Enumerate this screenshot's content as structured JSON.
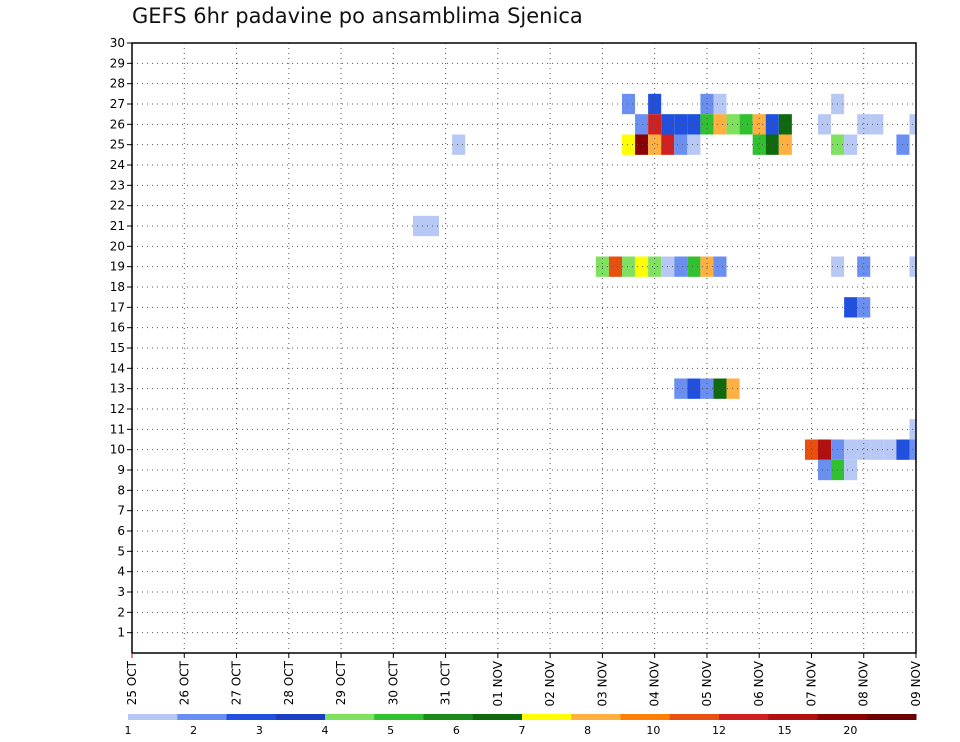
{
  "title": "GEFS 6hr padavine po ansamblima Sjenica",
  "chart_data": {
    "type": "heatmap",
    "title": "GEFS 6hr padavine po ansamblima Sjenica",
    "xlabel": "",
    "ylabel": "",
    "x_ticks": [
      "25 OCT",
      "26 OCT",
      "27 OCT",
      "28 OCT",
      "29 OCT",
      "30 OCT",
      "31 OCT",
      "01 NOV",
      "02 NOV",
      "03 NOV",
      "04 NOV",
      "05 NOV",
      "06 NOV",
      "07 NOV",
      "08 NOV",
      "09 NOV"
    ],
    "x_range_days": [
      0,
      15
    ],
    "y_ticks": [
      1,
      2,
      3,
      4,
      5,
      6,
      7,
      8,
      9,
      10,
      11,
      12,
      13,
      14,
      15,
      16,
      17,
      18,
      19,
      20,
      21,
      22,
      23,
      24,
      25,
      26,
      27,
      28,
      29,
      30
    ],
    "y_range": [
      0,
      30
    ],
    "grid": true,
    "legend": {
      "position": "bottom",
      "colors": [
        "#b7c8f5",
        "#6b8ff0",
        "#2050dd",
        "#1a3fc2",
        "#80e060",
        "#30c030",
        "#1a8a1a",
        "#0f6a0f",
        "#ffff00",
        "#ffb040",
        "#ff8000",
        "#e85010",
        "#d02020",
        "#b01010",
        "#8b0000",
        "#6a0000"
      ],
      "labels": [
        "1",
        "2",
        "3",
        "4",
        "5",
        "6",
        "7",
        "8",
        "10",
        "12",
        "15",
        "20"
      ],
      "label_positions": [
        0,
        2,
        4,
        6,
        8,
        10,
        12,
        14,
        16,
        18,
        20,
        22
      ]
    },
    "cells": [
      {
        "day": 6.25,
        "member": 25,
        "color": "#b7c8f5"
      },
      {
        "day": 5.5,
        "member": 21,
        "color": "#b7c8f5"
      },
      {
        "day": 5.75,
        "member": 21,
        "color": "#b7c8f5"
      },
      {
        "day": 9.5,
        "member": 27,
        "color": "#6b8ff0"
      },
      {
        "day": 10.0,
        "member": 27,
        "color": "#2050dd"
      },
      {
        "day": 11.0,
        "member": 27,
        "color": "#6b8ff0"
      },
      {
        "day": 11.25,
        "member": 27,
        "color": "#b7c8f5"
      },
      {
        "day": 13.5,
        "member": 27,
        "color": "#b7c8f5"
      },
      {
        "day": 9.75,
        "member": 26,
        "color": "#6b8ff0"
      },
      {
        "day": 10.0,
        "member": 26,
        "color": "#d02020"
      },
      {
        "day": 10.25,
        "member": 26,
        "color": "#2050dd"
      },
      {
        "day": 10.5,
        "member": 26,
        "color": "#2050dd"
      },
      {
        "day": 10.75,
        "member": 26,
        "color": "#2050dd"
      },
      {
        "day": 11.0,
        "member": 26,
        "color": "#30c030"
      },
      {
        "day": 11.25,
        "member": 26,
        "color": "#ffb040"
      },
      {
        "day": 11.5,
        "member": 26,
        "color": "#80e060"
      },
      {
        "day": 11.75,
        "member": 26,
        "color": "#30c030"
      },
      {
        "day": 12.0,
        "member": 26,
        "color": "#ffb040"
      },
      {
        "day": 12.25,
        "member": 26,
        "color": "#2050dd"
      },
      {
        "day": 12.5,
        "member": 26,
        "color": "#0f6a0f"
      },
      {
        "day": 13.25,
        "member": 26,
        "color": "#b7c8f5"
      },
      {
        "day": 14.0,
        "member": 26,
        "color": "#b7c8f5"
      },
      {
        "day": 14.25,
        "member": 26,
        "color": "#b7c8f5"
      },
      {
        "day": 15.0,
        "member": 26,
        "color": "#b7c8f5"
      },
      {
        "day": 9.5,
        "member": 25,
        "color": "#ffff00"
      },
      {
        "day": 9.75,
        "member": 25,
        "color": "#8b0000"
      },
      {
        "day": 10.0,
        "member": 25,
        "color": "#ffb040"
      },
      {
        "day": 10.25,
        "member": 25,
        "color": "#d02020"
      },
      {
        "day": 10.5,
        "member": 25,
        "color": "#6b8ff0"
      },
      {
        "day": 10.75,
        "member": 25,
        "color": "#b7c8f5"
      },
      {
        "day": 12.0,
        "member": 25,
        "color": "#30c030"
      },
      {
        "day": 12.25,
        "member": 25,
        "color": "#0f6a0f"
      },
      {
        "day": 12.5,
        "member": 25,
        "color": "#ffb040"
      },
      {
        "day": 13.5,
        "member": 25,
        "color": "#80e060"
      },
      {
        "day": 13.75,
        "member": 25,
        "color": "#b7c8f5"
      },
      {
        "day": 14.75,
        "member": 25,
        "color": "#6b8ff0"
      },
      {
        "day": 9.0,
        "member": 19,
        "color": "#80e060"
      },
      {
        "day": 9.25,
        "member": 19,
        "color": "#e85010"
      },
      {
        "day": 9.5,
        "member": 19,
        "color": "#80e060"
      },
      {
        "day": 9.75,
        "member": 19,
        "color": "#ffff00"
      },
      {
        "day": 10.0,
        "member": 19,
        "color": "#80e060"
      },
      {
        "day": 10.25,
        "member": 19,
        "color": "#b7c8f5"
      },
      {
        "day": 10.5,
        "member": 19,
        "color": "#6b8ff0"
      },
      {
        "day": 10.75,
        "member": 19,
        "color": "#30c030"
      },
      {
        "day": 11.0,
        "member": 19,
        "color": "#ffb040"
      },
      {
        "day": 11.25,
        "member": 19,
        "color": "#6b8ff0"
      },
      {
        "day": 13.5,
        "member": 19,
        "color": "#b7c8f5"
      },
      {
        "day": 14.0,
        "member": 19,
        "color": "#6b8ff0"
      },
      {
        "day": 15.0,
        "member": 19,
        "color": "#b7c8f5"
      },
      {
        "day": 13.75,
        "member": 17,
        "color": "#2050dd"
      },
      {
        "day": 14.0,
        "member": 17,
        "color": "#6b8ff0"
      },
      {
        "day": 10.5,
        "member": 13,
        "color": "#6b8ff0"
      },
      {
        "day": 10.75,
        "member": 13,
        "color": "#2050dd"
      },
      {
        "day": 11.0,
        "member": 13,
        "color": "#6b8ff0"
      },
      {
        "day": 11.25,
        "member": 13,
        "color": "#0f6a0f"
      },
      {
        "day": 11.5,
        "member": 13,
        "color": "#ffb040"
      },
      {
        "day": 15.0,
        "member": 11,
        "color": "#b7c8f5"
      },
      {
        "day": 13.0,
        "member": 10,
        "color": "#e85010"
      },
      {
        "day": 13.25,
        "member": 10,
        "color": "#b01010"
      },
      {
        "day": 13.5,
        "member": 10,
        "color": "#6b8ff0"
      },
      {
        "day": 13.75,
        "member": 10,
        "color": "#b7c8f5"
      },
      {
        "day": 14.0,
        "member": 10,
        "color": "#b7c8f5"
      },
      {
        "day": 14.25,
        "member": 10,
        "color": "#b7c8f5"
      },
      {
        "day": 14.5,
        "member": 10,
        "color": "#b7c8f5"
      },
      {
        "day": 14.75,
        "member": 10,
        "color": "#2050dd"
      },
      {
        "day": 15.0,
        "member": 10,
        "color": "#6b8ff0"
      },
      {
        "day": 13.25,
        "member": 9,
        "color": "#6b8ff0"
      },
      {
        "day": 13.5,
        "member": 9,
        "color": "#30c030"
      },
      {
        "day": 13.75,
        "member": 9,
        "color": "#b7c8f5"
      }
    ]
  }
}
